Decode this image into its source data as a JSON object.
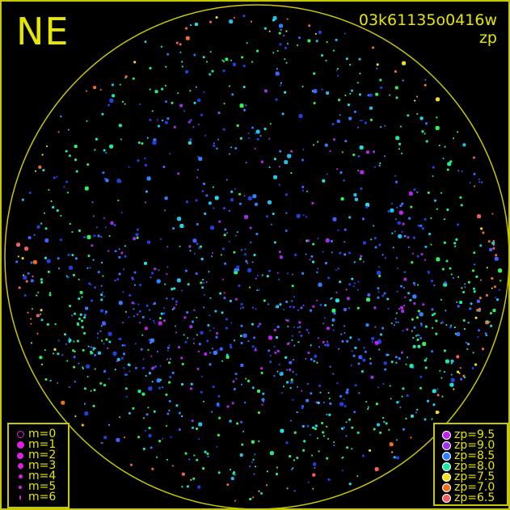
{
  "direction_label": "NE",
  "frame_id": "03k61135o0416w",
  "color_key": "zp",
  "magnitude_legend": [
    {
      "label": "m=0",
      "size": 0
    },
    {
      "label": "m=1",
      "size": 1
    },
    {
      "label": "m=2",
      "size": 2
    },
    {
      "label": "m=3",
      "size": 3
    },
    {
      "label": "m=4",
      "size": 4
    },
    {
      "label": "m=5",
      "size": 5
    },
    {
      "label": "m=6",
      "size": 6
    }
  ],
  "magnitude_legend_color": "#e020e0",
  "zp_legend": [
    {
      "label": "zp=9.5",
      "color": "#c020f0"
    },
    {
      "label": "zp=9.0",
      "color": "#a030e8"
    },
    {
      "label": "zp=8.5",
      "color": "#3080ff"
    },
    {
      "label": "zp=8.0",
      "color": "#20e8a0"
    },
    {
      "label": "zp=7.5",
      "color": "#f0e020"
    },
    {
      "label": "zp=7.0",
      "color": "#f07020"
    },
    {
      "label": "zp=6.5",
      "color": "#f06060"
    }
  ],
  "colors": {
    "frame": "#c8c800",
    "text": "#e6e600",
    "background": "#000000"
  }
}
